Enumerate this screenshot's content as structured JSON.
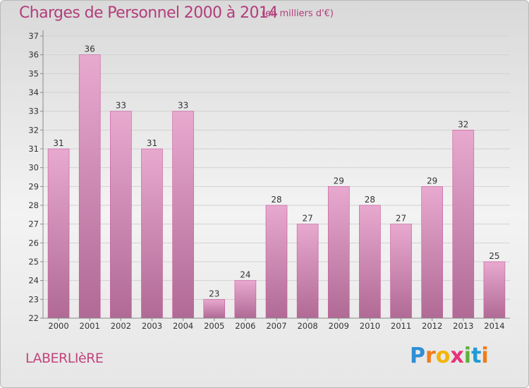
{
  "header": {
    "title": "Charges de Personnel 2000 à 2014",
    "subtitle": "(en milliers d'€)"
  },
  "footer": {
    "commune": "LABERLIèRE",
    "logo_letters": [
      "P",
      "r",
      "o",
      "x",
      "i",
      "t",
      "i"
    ],
    "logo_colors": [
      "#2e8fd6",
      "#f07d1a",
      "#f4b400",
      "#e8327a",
      "#5db33a",
      "#1e9bd7",
      "#f07d1a"
    ]
  },
  "colors": {
    "bar_top": "#e8a9cf",
    "bar_bottom": "#b06a95",
    "bar_stroke": "#c7589a",
    "text": "#333333",
    "accent": "#b23d7b"
  },
  "chart_data": {
    "type": "bar",
    "title": "Charges de Personnel 2000 à 2014",
    "subtitle": "(en milliers d'€)",
    "categories": [
      "2000",
      "2001",
      "2002",
      "2003",
      "2004",
      "2005",
      "2006",
      "2007",
      "2008",
      "2009",
      "2010",
      "2011",
      "2012",
      "2013",
      "2014"
    ],
    "values": [
      31,
      36,
      33,
      31,
      33,
      23,
      24,
      28,
      27,
      29,
      28,
      27,
      29,
      32,
      25
    ],
    "ylim": [
      22,
      37
    ],
    "yticks": [
      22,
      23,
      24,
      25,
      26,
      27,
      28,
      29,
      30,
      31,
      32,
      33,
      34,
      35,
      36,
      37
    ],
    "grid": true,
    "data_labels": true
  }
}
